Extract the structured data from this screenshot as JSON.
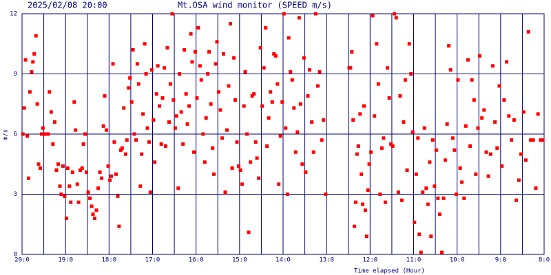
{
  "chart_data": {
    "type": "scatter",
    "title": "Mt.OSA wind monitor (SPEED m/s)",
    "subtitle": "2025/02/08 20:00",
    "ylabel": "m/s",
    "xlabel": "Time elapsed (Hour)",
    "color": "#ff0000",
    "grid": true,
    "xlim": [
      0,
      12
    ],
    "ylim": [
      0,
      12
    ],
    "yticks": [
      0,
      3,
      6,
      9,
      12
    ],
    "xticks": [
      {
        "value": 0,
        "label": "20:0"
      },
      {
        "value": 1,
        "label": "19:0"
      },
      {
        "value": 2,
        "label": "18:0"
      },
      {
        "value": 3,
        "label": "17:0"
      },
      {
        "value": 4,
        "label": "16:0"
      },
      {
        "value": 5,
        "label": "15:0"
      },
      {
        "value": 6,
        "label": "14:0"
      },
      {
        "value": 7,
        "label": "13:0"
      },
      {
        "value": 8,
        "label": "12:0"
      },
      {
        "value": 9,
        "label": "11:0"
      },
      {
        "value": 10,
        "label": "10:0"
      },
      {
        "value": 11,
        "label": "9:0"
      },
      {
        "value": 12,
        "label": "8:0"
      }
    ],
    "x_minor_grid": [
      0.5,
      1.5,
      2.5,
      3.5,
      4.5,
      5.5,
      6.5,
      7.5,
      8.5,
      9.5,
      10.5,
      11.5
    ],
    "x": [
      0.02,
      0.05,
      0.08,
      0.12,
      0.15,
      0.18,
      0.22,
      0.25,
      0.28,
      0.32,
      0.35,
      0.38,
      0.42,
      0.45,
      0.48,
      0.52,
      0.56,
      0.6,
      0.63,
      0.67,
      0.71,
      0.75,
      0.79,
      0.83,
      0.87,
      0.9,
      0.94,
      0.98,
      1.02,
      1.05,
      1.09,
      1.12,
      1.16,
      1.2,
      1.23,
      1.27,
      1.3,
      1.34,
      1.38,
      1.41,
      1.45,
      1.48,
      1.52,
      1.56,
      1.6,
      1.63,
      1.67,
      1.71,
      1.75,
      1.79,
      1.83,
      1.87,
      1.9,
      1.94,
      1.98,
      2.02,
      2.05,
      2.09,
      2.12,
      2.16,
      2.2,
      2.23,
      2.27,
      2.3,
      2.34,
      2.38,
      2.41,
      2.45,
      2.48,
      2.52,
      2.55,
      2.58,
      2.62,
      2.65,
      2.68,
      2.72,
      2.75,
      2.78,
      2.82,
      2.85,
      2.88,
      2.92,
      2.95,
      2.98,
      3.02,
      3.05,
      3.09,
      3.12,
      3.16,
      3.2,
      3.23,
      3.27,
      3.3,
      3.34,
      3.38,
      3.41,
      3.45,
      3.48,
      3.52,
      3.55,
      3.59,
      3.62,
      3.66,
      3.7,
      3.73,
      3.77,
      3.8,
      3.84,
      3.88,
      3.91,
      3.95,
      3.98,
      4.02,
      4.05,
      4.09,
      4.12,
      4.16,
      4.2,
      4.23,
      4.27,
      4.3,
      4.34,
      4.38,
      4.41,
      4.45,
      4.48,
      4.52,
      4.56,
      4.6,
      4.63,
      4.67,
      4.71,
      4.75,
      4.79,
      4.83,
      4.87,
      4.9,
      4.94,
      4.98,
      5.02,
      5.06,
      5.1,
      5.13,
      5.17,
      5.21,
      5.25,
      5.29,
      5.33,
      5.37,
      5.4,
      5.44,
      5.48,
      5.52,
      5.56,
      5.6,
      5.63,
      5.67,
      5.71,
      5.75,
      5.79,
      5.83,
      5.87,
      5.9,
      5.94,
      5.98,
      6.02,
      6.06,
      6.1,
      6.13,
      6.17,
      6.21,
      6.25,
      6.29,
      6.33,
      6.37,
      6.4,
      6.44,
      6.48,
      6.52,
      6.57,
      6.61,
      6.66,
      6.7,
      6.75,
      6.8,
      6.84,
      6.89,
      6.93,
      6.98,
      7.52,
      7.55,
      7.58,
      7.61,
      7.64,
      7.67,
      7.7,
      7.73,
      7.77,
      7.8,
      7.83,
      7.86,
      7.89,
      7.92,
      7.95,
      7.98,
      8.02,
      8.06,
      8.1,
      8.15,
      8.19,
      8.23,
      8.27,
      8.31,
      8.35,
      8.4,
      8.44,
      8.48,
      8.52,
      8.56,
      8.6,
      8.65,
      8.69,
      8.73,
      8.77,
      8.81,
      8.85,
      8.9,
      8.94,
      8.98,
      9.02,
      9.06,
      9.1,
      9.13,
      9.17,
      9.21,
      9.25,
      9.29,
      9.33,
      9.37,
      9.4,
      9.44,
      9.48,
      9.52,
      9.56,
      9.6,
      9.65,
      9.69,
      9.73,
      9.77,
      9.81,
      9.85,
      9.9,
      9.94,
      9.98,
      10.02,
      10.07,
      10.11,
      10.16,
      10.2,
      10.25,
      10.3,
      10.34,
      10.39,
      10.43,
      10.48,
      10.52,
      10.57,
      10.62,
      10.67,
      10.72,
      10.77,
      10.82,
      10.87,
      10.92,
      10.97,
      11.03,
      11.08,
      11.14,
      11.19,
      11.25,
      11.31,
      11.36,
      11.42,
      11.47,
      11.53,
      11.58,
      11.64,
      11.69,
      11.75,
      11.81,
      11.86,
      11.92,
      11.97
    ],
    "values": [
      6,
      7.3,
      9.7,
      5.9,
      3.8,
      8.1,
      9.1,
      9.6,
      10,
      10.9,
      7.5,
      4.5,
      4.3,
      6,
      6.3,
      6,
      6,
      6,
      8.1,
      7.1,
      5.5,
      6.6,
      4.2,
      4.5,
      3.4,
      3,
      4.4,
      2.9,
      1.8,
      4.3,
      3.4,
      2.6,
      4.1,
      7.6,
      6.2,
      3.5,
      2.6,
      4.2,
      4.3,
      5.5,
      6,
      4.1,
      3.1,
      2.8,
      2.4,
      2,
      1.8,
      2.2,
      3.3,
      4.1,
      3.8,
      6.4,
      7.9,
      6.2,
      4.4,
      3.7,
      3.9,
      9.5,
      5.6,
      4,
      2.9,
      1.4,
      5.2,
      5.3,
      7.3,
      5,
      5.7,
      8.3,
      8.8,
      7.6,
      10.2,
      6,
      5.7,
      9.5,
      8.5,
      3.4,
      5,
      7,
      10.5,
      9,
      6.3,
      5.6,
      3.1,
      9.2,
      6.7,
      4.6,
      8,
      9.4,
      7.4,
      5.5,
      7.8,
      9.3,
      5.4,
      10.3,
      6.6,
      8.5,
      12,
      7.7,
      6.3,
      6.9,
      3.3,
      9,
      7.1,
      5.5,
      10.2,
      8,
      6.5,
      7.4,
      11,
      9.6,
      5.1,
      10.1,
      7.8,
      11.3,
      9.4,
      8.7,
      6,
      4.6,
      6.8,
      9,
      10.1,
      7.5,
      5.3,
      4,
      9.5,
      10.6,
      8.1,
      7.2,
      5.8,
      10,
      3.1,
      6.2,
      8.4,
      11.5,
      4.3,
      9.8,
      7.7,
      5.6,
      4.4,
      4.2,
      3.5,
      7.4,
      9.1,
      6,
      1.1,
      4.6,
      7.9,
      8,
      5.6,
      4.8,
      3.8,
      10.3,
      7.4,
      9.3,
      11.3,
      5.4,
      6.8,
      8.1,
      7.6,
      10,
      9.9,
      8.5,
      3.5,
      5.9,
      7.6,
      12,
      6.3,
      3,
      10.8,
      9.1,
      8.7,
      7.3,
      5.1,
      6.1,
      11.8,
      7.5,
      4.5,
      9.8,
      4.1,
      7.9,
      9.2,
      6.6,
      5.1,
      12,
      8.4,
      9.1,
      5.7,
      6.7,
      3,
      9.3,
      9.3,
      10.1,
      6.7,
      1.4,
      2.6,
      5,
      5.4,
      7,
      4,
      2.5,
      7.4,
      2.2,
      0.9,
      3.2,
      4.5,
      5.1,
      11.9,
      6.9,
      10.5,
      8.5,
      3,
      5.3,
      5.8,
      2.6,
      9.3,
      7.8,
      5.5,
      5.4,
      12,
      11.8,
      3.1,
      7.9,
      2.7,
      6.6,
      8.7,
      4.2,
      10.5,
      9,
      6.1,
      1.6,
      4,
      5.8,
      1,
      0.1,
      3.1,
      6.3,
      3.3,
      2.5,
      4.6,
      0.9,
      5.7,
      3.4,
      5.2,
      2.8,
      2,
      0.1,
      2.8,
      4.7,
      6.5,
      10.4,
      9.2,
      5.8,
      5.2,
      3,
      8.7,
      4.3,
      3.6,
      2.8,
      6.4,
      9.7,
      5.4,
      8.7,
      7.7,
      4,
      6.3,
      9.9,
      6.8,
      7.2,
      5.1,
      3.9,
      5,
      9.4,
      6.6,
      5.3,
      8.4,
      4.4,
      7.7,
      9.6,
      6.9,
      5.7,
      6.7,
      2.7,
      3.7,
      5,
      7.1,
      4.7,
      11.1,
      5.7,
      5.7,
      3.3,
      7,
      5.7,
      5.7
    ]
  }
}
